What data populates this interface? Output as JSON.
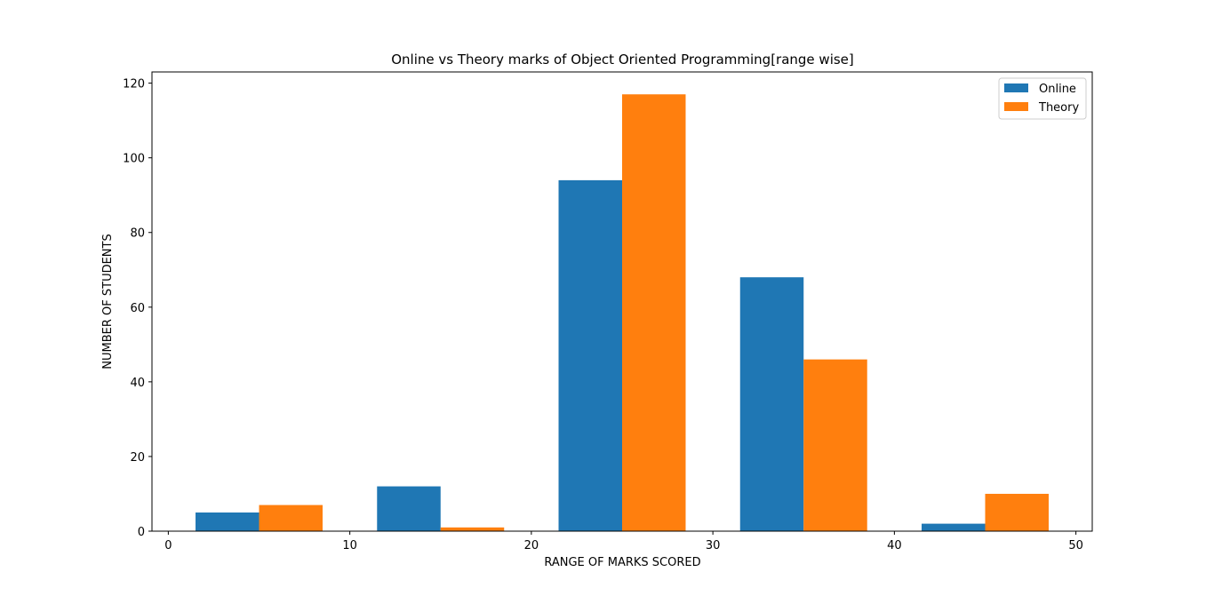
{
  "chart_data": {
    "type": "bar",
    "title": "Online vs Theory marks of Object Oriented Programming[range wise]",
    "xlabel": "RANGE OF MARKS SCORED",
    "ylabel": "NUMBER OF STUDENTS",
    "xlim": [
      -0.9,
      50.9
    ],
    "ylim": [
      0,
      123
    ],
    "xticks": [
      0,
      10,
      20,
      30,
      40,
      50
    ],
    "yticks": [
      0,
      20,
      40,
      60,
      80,
      100,
      120
    ],
    "bar_width": 3.5,
    "series": [
      {
        "name": "Online",
        "color": "#1f77b4",
        "x": [
          1.5,
          11.5,
          21.5,
          31.5,
          41.5
        ],
        "values": [
          5,
          12,
          94,
          68,
          2
        ]
      },
      {
        "name": "Theory",
        "color": "#ff7f0e",
        "x": [
          5.0,
          15.0,
          25.0,
          35.0,
          45.0
        ],
        "values": [
          7,
          1,
          117,
          46,
          10
        ]
      }
    ],
    "legend": "top-right",
    "grid": false
  }
}
